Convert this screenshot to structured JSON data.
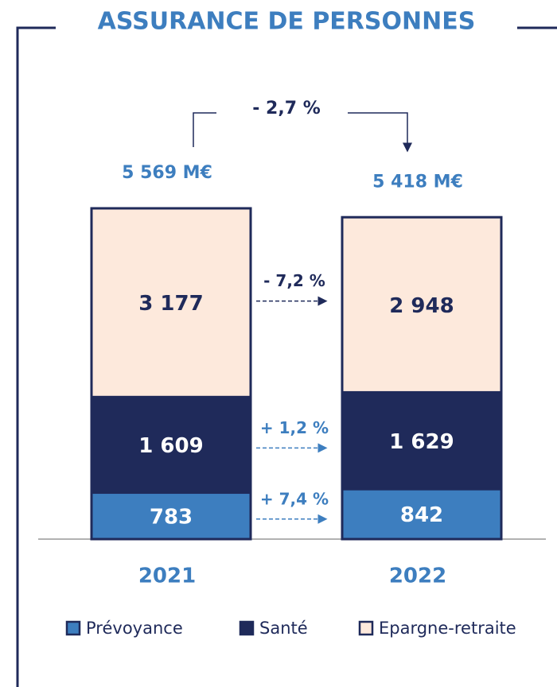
{
  "chart_data": {
    "type": "bar",
    "stacked": true,
    "title": "ASSURANCE DE PERSONNES",
    "categories": [
      "2021",
      "2022"
    ],
    "series": [
      {
        "name": "Prévoyance",
        "color": "#3d7ebf",
        "label_color": "#ffffff",
        "values": [
          783,
          842
        ],
        "value_labels": [
          "783",
          "842"
        ]
      },
      {
        "name": "Santé",
        "color": "#1f2a5a",
        "label_color": "#ffffff",
        "values": [
          1609,
          1629
        ],
        "value_labels": [
          "1 609",
          "1 629"
        ]
      },
      {
        "name": "Epargne-retraite",
        "color": "#fde9dc",
        "label_color": "#1f2a5a",
        "values": [
          3177,
          2948
        ],
        "value_labels": [
          "3 177",
          "2 948"
        ]
      }
    ],
    "totals": {
      "values": [
        5569,
        5418
      ],
      "value_labels": [
        "5 569 M€",
        "5 418 M€"
      ]
    },
    "total_change": "- 2,7 %",
    "segment_changes": [
      "+ 7,4 %",
      "+ 1,2 %",
      "- 7,2 %"
    ]
  }
}
